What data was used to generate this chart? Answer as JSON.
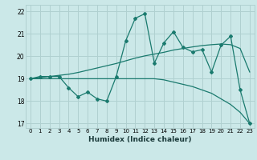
{
  "xlabel": "Humidex (Indice chaleur)",
  "bg_color": "#cbe8e8",
  "grid_color": "#b0d0d0",
  "line_color": "#1a7a6e",
  "xlim": [
    -0.5,
    23.5
  ],
  "ylim": [
    16.8,
    22.3
  ],
  "yticks": [
    17,
    18,
    19,
    20,
    21,
    22
  ],
  "xticks": [
    0,
    1,
    2,
    3,
    4,
    5,
    6,
    7,
    8,
    9,
    10,
    11,
    12,
    13,
    14,
    15,
    16,
    17,
    18,
    19,
    20,
    21,
    22,
    23
  ],
  "series_main": [
    19.0,
    19.1,
    19.1,
    19.1,
    18.6,
    18.2,
    18.4,
    18.1,
    18.0,
    19.1,
    20.7,
    21.7,
    21.9,
    19.7,
    20.6,
    21.1,
    20.4,
    20.2,
    20.3,
    19.3,
    20.5,
    20.9,
    18.5,
    17.0
  ],
  "series_smooth_upper": [
    19.0,
    19.05,
    19.1,
    19.15,
    19.2,
    19.28,
    19.38,
    19.48,
    19.58,
    19.68,
    19.8,
    19.92,
    20.02,
    20.1,
    20.18,
    20.28,
    20.35,
    20.42,
    20.48,
    20.52,
    20.55,
    20.52,
    20.35,
    19.3
  ],
  "series_smooth_lower": [
    19.0,
    19.0,
    19.0,
    19.0,
    19.0,
    19.0,
    19.0,
    19.0,
    19.0,
    19.0,
    19.0,
    19.0,
    19.0,
    19.0,
    18.95,
    18.85,
    18.75,
    18.65,
    18.5,
    18.35,
    18.1,
    17.85,
    17.5,
    17.0
  ]
}
